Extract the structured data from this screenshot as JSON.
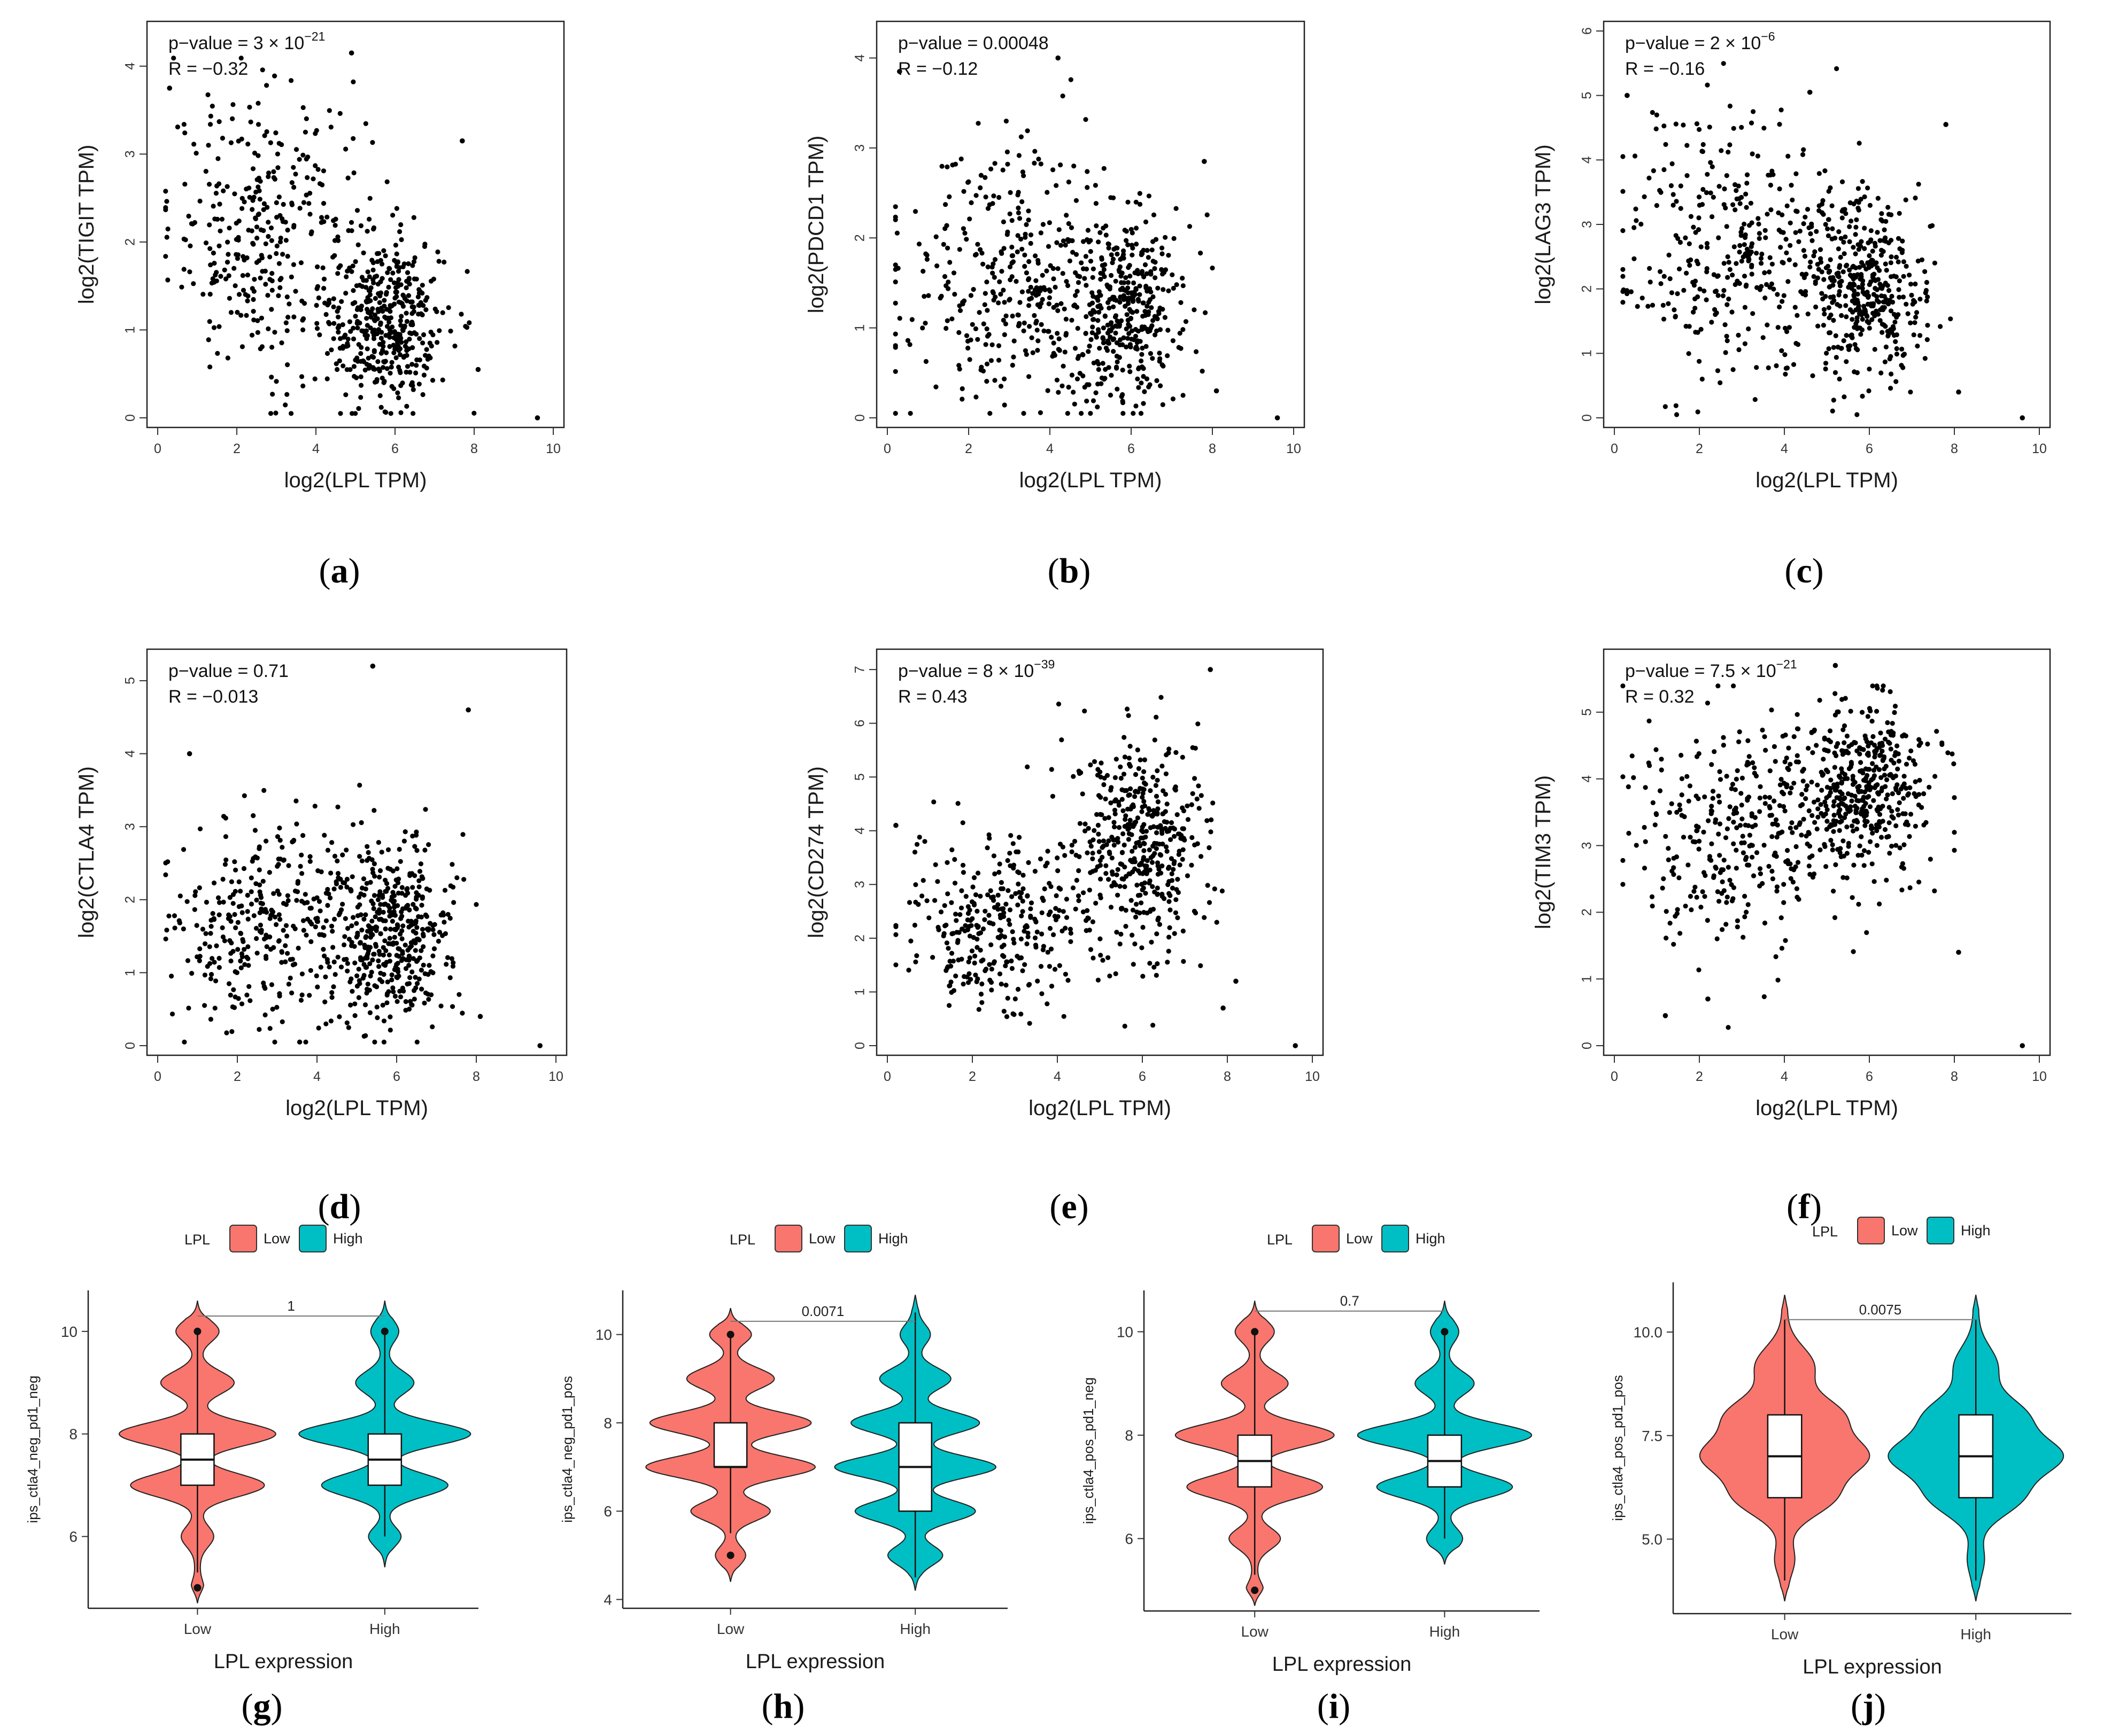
{
  "colors": {
    "low": "#F8766D",
    "high": "#00BFC4",
    "point": "#000000"
  },
  "chart_data": [
    {
      "panel": "a",
      "type": "scatter",
      "xlabel": "log2(LPL TPM)",
      "ylabel": "log2(TIGIT TPM)",
      "xlim": [
        0,
        10
      ],
      "ylim": [
        0,
        4.4
      ],
      "xticks": [
        "0",
        "2",
        "4",
        "6",
        "8",
        "10"
      ],
      "yticks": [
        "0",
        "1",
        "2",
        "3",
        "4"
      ],
      "annotation": {
        "pvalue_base": "p−value = 3 × 10",
        "pvalue_exp": "−21",
        "r": "R = −0.32"
      },
      "n_points": 750,
      "clusters": [
        {
          "mx": 2.8,
          "my": 2.1,
          "sx": 1.25,
          "sy": 0.8,
          "n": 340
        },
        {
          "mx": 5.8,
          "my": 1.1,
          "sx": 0.75,
          "sy": 0.5,
          "n": 410
        }
      ],
      "highlights": [
        {
          "x": 9.6,
          "y": 0.0
        },
        {
          "x": 0.3,
          "y": 3.75
        },
        {
          "x": 4.9,
          "y": 4.15
        },
        {
          "x": 7.7,
          "y": 3.15
        },
        {
          "x": 8.1,
          "y": 0.55
        }
      ]
    },
    {
      "panel": "b",
      "type": "scatter",
      "xlabel": "log2(LPL TPM)",
      "ylabel": "log2(PDCD1 TPM)",
      "xlim": [
        0,
        10
      ],
      "ylim": [
        0,
        4.3
      ],
      "xticks": [
        "0",
        "2",
        "4",
        "6",
        "8",
        "10"
      ],
      "yticks": [
        "0",
        "1",
        "2",
        "3",
        "4"
      ],
      "annotation": {
        "pvalue_base": "p−value = 0.00048",
        "pvalue_exp": "",
        "r": "R = −0.12"
      },
      "n_points": 750,
      "clusters": [
        {
          "mx": 2.9,
          "my": 1.6,
          "sx": 1.3,
          "sy": 0.8,
          "n": 330
        },
        {
          "mx": 5.7,
          "my": 1.2,
          "sx": 0.8,
          "sy": 0.5,
          "n": 420
        }
      ],
      "highlights": [
        {
          "x": 9.6,
          "y": 0.0
        },
        {
          "x": 4.2,
          "y": 4.0
        },
        {
          "x": 0.3,
          "y": 3.85
        },
        {
          "x": 7.8,
          "y": 2.85
        },
        {
          "x": 8.1,
          "y": 0.3
        }
      ]
    },
    {
      "panel": "c",
      "type": "scatter",
      "xlabel": "log2(LPL TPM)",
      "ylabel": "log2(LAG3 TPM)",
      "xlim": [
        0,
        10
      ],
      "ylim": [
        0,
        6.0
      ],
      "xticks": [
        "0",
        "2",
        "4",
        "6",
        "8",
        "10"
      ],
      "yticks": [
        "0",
        "1",
        "2",
        "3",
        "4",
        "5",
        "6"
      ],
      "annotation": {
        "pvalue_base": "p−value = 2 × 10",
        "pvalue_exp": "−6",
        "r": "R = −0.16"
      },
      "n_points": 750,
      "clusters": [
        {
          "mx": 2.8,
          "my": 2.6,
          "sx": 1.3,
          "sy": 1.1,
          "n": 330
        },
        {
          "mx": 5.8,
          "my": 2.0,
          "sx": 0.75,
          "sy": 0.7,
          "n": 420
        }
      ],
      "highlights": [
        {
          "x": 9.6,
          "y": 0.0
        },
        {
          "x": 0.3,
          "y": 5.0
        },
        {
          "x": 4.6,
          "y": 5.05
        },
        {
          "x": 7.8,
          "y": 4.55
        },
        {
          "x": 8.1,
          "y": 0.4
        }
      ]
    },
    {
      "panel": "d",
      "type": "scatter",
      "xlabel": "log2(LPL TPM)",
      "ylabel": "log2(CTLA4 TPM)",
      "xlim": [
        0,
        10
      ],
      "ylim": [
        0,
        5.3
      ],
      "xticks": [
        "0",
        "2",
        "4",
        "6",
        "8",
        "10"
      ],
      "yticks": [
        "0",
        "1",
        "2",
        "3",
        "4",
        "5"
      ],
      "annotation": {
        "pvalue_base": "p−value = 0.71",
        "pvalue_exp": "",
        "r": "R = −0.013"
      },
      "n_points": 760,
      "clusters": [
        {
          "mx": 2.8,
          "my": 1.6,
          "sx": 1.3,
          "sy": 0.75,
          "n": 340
        },
        {
          "mx": 5.8,
          "my": 1.5,
          "sx": 0.8,
          "sy": 0.65,
          "n": 420
        }
      ],
      "highlights": [
        {
          "x": 9.6,
          "y": 0.0
        },
        {
          "x": 5.4,
          "y": 5.2
        },
        {
          "x": 7.8,
          "y": 4.6
        },
        {
          "x": 0.8,
          "y": 4.0
        },
        {
          "x": 8.1,
          "y": 0.4
        }
      ]
    },
    {
      "panel": "e",
      "type": "scatter",
      "xlabel": "log2(LPL TPM)",
      "ylabel": "log2(CD274 TPM)",
      "xlim": [
        0,
        10
      ],
      "ylim": [
        0,
        7.2
      ],
      "xticks": [
        "0",
        "2",
        "4",
        "6",
        "8",
        "10"
      ],
      "yticks": [
        "0",
        "1",
        "2",
        "3",
        "4",
        "5",
        "6",
        "7"
      ],
      "annotation": {
        "pvalue_base": "p−value = 8 × 10",
        "pvalue_exp": "−39",
        "r": "R = 0.43"
      },
      "n_points": 760,
      "clusters": [
        {
          "mx": 2.7,
          "my": 2.3,
          "sx": 1.2,
          "sy": 0.9,
          "n": 340
        },
        {
          "mx": 5.9,
          "my": 3.8,
          "sx": 0.75,
          "sy": 1.0,
          "n": 420
        }
      ],
      "highlights": [
        {
          "x": 9.6,
          "y": 0.0
        },
        {
          "x": 7.6,
          "y": 7.0
        },
        {
          "x": 0.2,
          "y": 4.1
        },
        {
          "x": 7.9,
          "y": 0.7
        },
        {
          "x": 8.2,
          "y": 1.2
        }
      ]
    },
    {
      "panel": "f",
      "type": "scatter",
      "xlabel": "log2(LPL TPM)",
      "ylabel": "log2(TIM3 TPM)",
      "xlim": [
        0,
        10
      ],
      "ylim": [
        0,
        5.8
      ],
      "xticks": [
        "0",
        "2",
        "4",
        "6",
        "8",
        "10"
      ],
      "yticks": [
        "0",
        "1",
        "2",
        "3",
        "4",
        "5"
      ],
      "annotation": {
        "pvalue_base": "p−value = 7.5 × 10",
        "pvalue_exp": "−21",
        "r": "R = 0.32"
      },
      "n_points": 760,
      "clusters": [
        {
          "mx": 2.8,
          "my": 3.3,
          "sx": 1.25,
          "sy": 0.85,
          "n": 330
        },
        {
          "mx": 5.8,
          "my": 3.9,
          "sx": 0.8,
          "sy": 0.65,
          "n": 430
        }
      ],
      "highlights": [
        {
          "x": 9.6,
          "y": 0.0
        },
        {
          "x": 1.2,
          "y": 0.45
        },
        {
          "x": 2.2,
          "y": 0.7
        },
        {
          "x": 8.1,
          "y": 1.4
        },
        {
          "x": 5.2,
          "y": 5.7
        }
      ]
    },
    {
      "panel": "g",
      "type": "violin",
      "legend_title": "LPL",
      "legend_low": "Low",
      "legend_high": "High",
      "xlabel": "LPL expression",
      "ylabel": "ips_ctla4_neg_pd1_neg",
      "categories": [
        "Low",
        "High"
      ],
      "ylim": [
        4.6,
        10.8
      ],
      "yticks": [
        6,
        8,
        10
      ],
      "ytick_labels": [
        "6",
        "8",
        "10"
      ],
      "pvalue": "1",
      "bracket_y": 10.3,
      "series": [
        {
          "name": "Low",
          "min": 4.7,
          "max": 10.6,
          "q1": 7.0,
          "median": 7.5,
          "q3": 8.0,
          "wlo": 5.3,
          "whi": 10.0,
          "modes": [
            {
              "v": 5.0,
              "w": 0.05,
              "s": 0.15
            },
            {
              "v": 6.0,
              "w": 0.18,
              "s": 0.2
            },
            {
              "v": 7.0,
              "w": 0.85,
              "s": 0.22
            },
            {
              "v": 8.0,
              "w": 1.0,
              "s": 0.22
            },
            {
              "v": 9.0,
              "w": 0.45,
              "s": 0.22
            },
            {
              "v": 10.0,
              "w": 0.25,
              "s": 0.2
            }
          ],
          "outliers": [
            5.0,
            10.0
          ]
        },
        {
          "name": "High",
          "min": 5.4,
          "max": 10.6,
          "q1": 7.0,
          "median": 7.5,
          "q3": 8.0,
          "wlo": 6.0,
          "whi": 10.0,
          "modes": [
            {
              "v": 6.0,
              "w": 0.18,
              "s": 0.18
            },
            {
              "v": 7.0,
              "w": 0.8,
              "s": 0.22
            },
            {
              "v": 8.0,
              "w": 1.1,
              "s": 0.22
            },
            {
              "v": 9.0,
              "w": 0.35,
              "s": 0.22
            },
            {
              "v": 10.0,
              "w": 0.15,
              "s": 0.2
            }
          ],
          "outliers": [
            10.0
          ]
        }
      ]
    },
    {
      "panel": "h",
      "type": "violin",
      "legend_title": "LPL",
      "legend_low": "Low",
      "legend_high": "High",
      "xlabel": "LPL expression",
      "ylabel": "ips_ctla4_neg_pd1_pos",
      "categories": [
        "Low",
        "High"
      ],
      "ylim": [
        3.8,
        11.0
      ],
      "yticks": [
        4,
        6,
        8,
        10
      ],
      "ytick_labels": [
        "4",
        "6",
        "8",
        "10"
      ],
      "pvalue": "0.0071",
      "bracket_y": 10.3,
      "series": [
        {
          "name": "Low",
          "min": 4.4,
          "max": 10.6,
          "q1": 7.0,
          "median": 7.0,
          "q3": 8.0,
          "wlo": 5.5,
          "whi": 10.0,
          "modes": [
            {
              "v": 5.0,
              "w": 0.15,
              "s": 0.2
            },
            {
              "v": 6.0,
              "w": 0.45,
              "s": 0.22
            },
            {
              "v": 7.0,
              "w": 1.0,
              "s": 0.24
            },
            {
              "v": 8.0,
              "w": 0.95,
              "s": 0.24
            },
            {
              "v": 9.0,
              "w": 0.5,
              "s": 0.24
            },
            {
              "v": 10.0,
              "w": 0.22,
              "s": 0.2
            }
          ],
          "outliers": [
            5.0,
            10.0
          ]
        },
        {
          "name": "High",
          "min": 4.2,
          "max": 10.9,
          "q1": 6.0,
          "median": 7.0,
          "q3": 8.0,
          "wlo": 4.5,
          "whi": 10.5,
          "modes": [
            {
              "v": 5.0,
              "w": 0.3,
              "s": 0.22
            },
            {
              "v": 6.0,
              "w": 0.7,
              "s": 0.24
            },
            {
              "v": 7.0,
              "w": 0.95,
              "s": 0.24
            },
            {
              "v": 8.0,
              "w": 0.75,
              "s": 0.24
            },
            {
              "v": 9.0,
              "w": 0.4,
              "s": 0.24
            },
            {
              "v": 10.0,
              "w": 0.15,
              "s": 0.22
            }
          ],
          "outliers": []
        }
      ]
    },
    {
      "panel": "i",
      "type": "violin",
      "legend_title": "LPL",
      "legend_low": "Low",
      "legend_high": "High",
      "xlabel": "LPL expression",
      "ylabel": "ips_ctla4_pos_pd1_neg",
      "categories": [
        "Low",
        "High"
      ],
      "ylim": [
        4.6,
        10.8
      ],
      "yticks": [
        6,
        8,
        10
      ],
      "ytick_labels": [
        "6",
        "8",
        "10"
      ],
      "pvalue": "0.7",
      "bracket_y": 10.4,
      "series": [
        {
          "name": "Low",
          "min": 4.7,
          "max": 10.6,
          "q1": 7.0,
          "median": 7.5,
          "q3": 8.0,
          "wlo": 5.3,
          "whi": 10.0,
          "modes": [
            {
              "v": 5.0,
              "w": 0.08,
              "s": 0.15
            },
            {
              "v": 6.0,
              "w": 0.3,
              "s": 0.2
            },
            {
              "v": 7.0,
              "w": 0.85,
              "s": 0.22
            },
            {
              "v": 8.0,
              "w": 1.0,
              "s": 0.22
            },
            {
              "v": 9.0,
              "w": 0.4,
              "s": 0.22
            },
            {
              "v": 10.0,
              "w": 0.22,
              "s": 0.2
            }
          ],
          "outliers": [
            5.0,
            10.0
          ]
        },
        {
          "name": "High",
          "min": 5.5,
          "max": 10.6,
          "q1": 7.0,
          "median": 7.5,
          "q3": 8.0,
          "wlo": 6.0,
          "whi": 10.0,
          "modes": [
            {
              "v": 6.0,
              "w": 0.2,
              "s": 0.2
            },
            {
              "v": 7.0,
              "w": 0.85,
              "s": 0.22
            },
            {
              "v": 8.0,
              "w": 1.1,
              "s": 0.22
            },
            {
              "v": 9.0,
              "w": 0.35,
              "s": 0.22
            },
            {
              "v": 10.0,
              "w": 0.15,
              "s": 0.2
            }
          ],
          "outliers": [
            10.0
          ]
        }
      ]
    },
    {
      "panel": "j",
      "type": "violin",
      "legend_title": "LPL",
      "legend_low": "Low",
      "legend_high": "High",
      "xlabel": "LPL expression",
      "ylabel": "ips_ctla4_pos_pd1_pos",
      "categories": [
        "Low",
        "High"
      ],
      "ylim": [
        3.2,
        11.2
      ],
      "yticks": [
        5.0,
        7.5,
        10.0
      ],
      "ytick_labels": [
        "5.0",
        "7.5",
        "10.0"
      ],
      "pvalue": "0.0075",
      "bracket_y": 10.3,
      "series": [
        {
          "name": "Low",
          "min": 3.5,
          "max": 10.9,
          "q1": 6.0,
          "median": 7.0,
          "q3": 8.0,
          "wlo": 4.0,
          "whi": 10.3,
          "modes": [
            {
              "v": 4.5,
              "w": 0.1,
              "s": 0.35
            },
            {
              "v": 6.0,
              "w": 0.6,
              "s": 0.45
            },
            {
              "v": 7.0,
              "w": 1.0,
              "s": 0.45
            },
            {
              "v": 8.0,
              "w": 0.7,
              "s": 0.45
            },
            {
              "v": 9.2,
              "w": 0.35,
              "s": 0.45
            }
          ],
          "outliers": []
        },
        {
          "name": "High",
          "min": 3.5,
          "max": 10.9,
          "q1": 6.0,
          "median": 7.0,
          "q3": 8.0,
          "wlo": 4.0,
          "whi": 10.3,
          "modes": [
            {
              "v": 4.5,
              "w": 0.08,
              "s": 0.35
            },
            {
              "v": 6.0,
              "w": 0.55,
              "s": 0.45
            },
            {
              "v": 7.0,
              "w": 1.05,
              "s": 0.45
            },
            {
              "v": 8.0,
              "w": 0.6,
              "s": 0.45
            },
            {
              "v": 9.2,
              "w": 0.25,
              "s": 0.45
            }
          ],
          "outliers": []
        }
      ]
    }
  ]
}
